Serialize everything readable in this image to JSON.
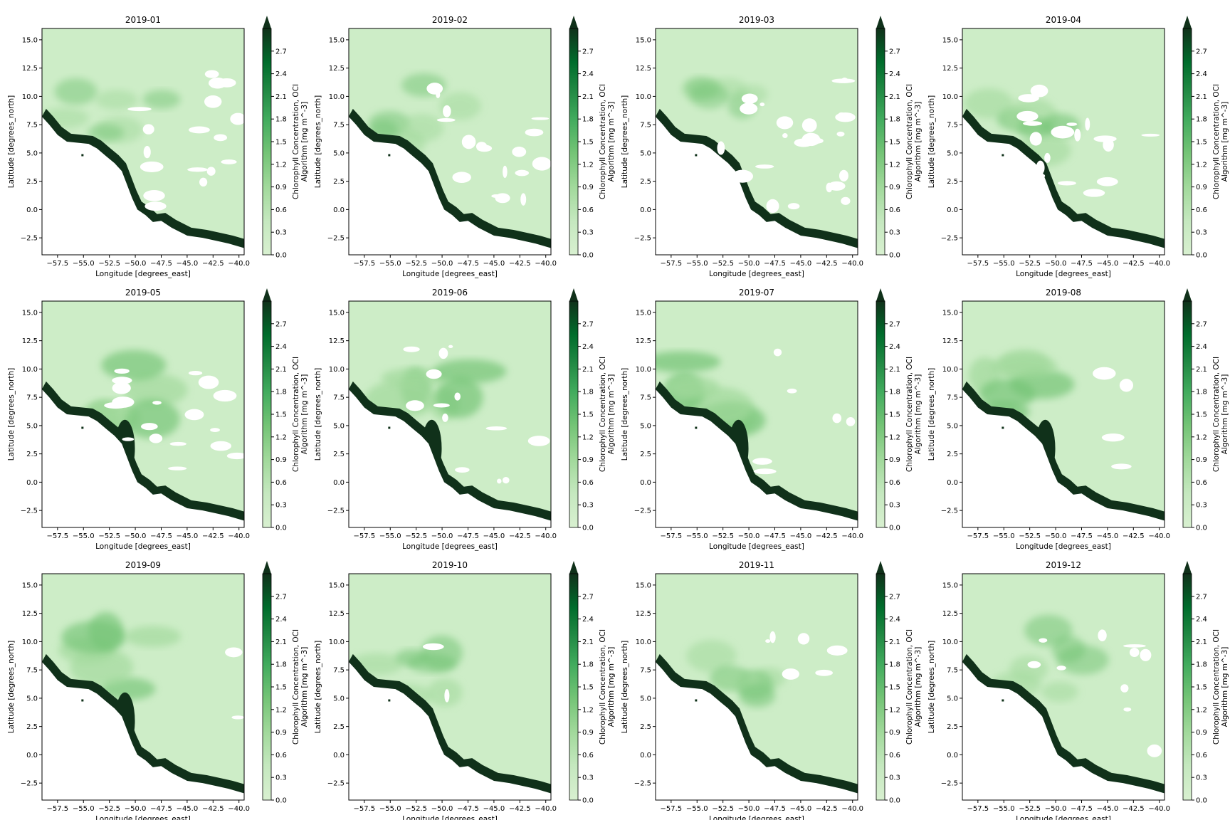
{
  "chart_data": {
    "type": "heatmap",
    "layout": "3 rows x 4 columns of panels",
    "titles": [
      "2019-01",
      "2019-02",
      "2019-03",
      "2019-04",
      "2019-05",
      "2019-06",
      "2019-07",
      "2019-08",
      "2019-09",
      "2019-10",
      "2019-11",
      "2019-12"
    ],
    "xlabel": "Longitude [degrees_east]",
    "ylabel": "Latitude [degrees_north]",
    "colorbar_label": "Chlorophyll Concentration, OCI Algorithm [mg m^-3]",
    "colorbar_label_lines": [
      "Chlorophyll Concentration, OCI",
      "Algorithm [mg m^-3]"
    ],
    "colormap": "Greens",
    "colorbar_extend": "max",
    "xlim": [
      -59,
      -39.5
    ],
    "ylim": [
      -4,
      16
    ],
    "vlim": [
      0,
      3.0
    ],
    "xticks": [
      -57.5,
      -55.0,
      -52.5,
      -50.0,
      -47.5,
      -45.0,
      -42.5,
      -40.0
    ],
    "xtick_labels": [
      "−57.5",
      "−55.0",
      "−52.5",
      "−50.0",
      "−47.5",
      "−45.0",
      "−42.5",
      "−40.0"
    ],
    "yticks": [
      -2.5,
      0.0,
      2.5,
      5.0,
      7.5,
      10.0,
      12.5,
      15.0
    ],
    "ytick_labels": [
      "−2.5",
      "0.0",
      "2.5",
      "5.0",
      "7.5",
      "10.0",
      "12.5",
      "15.0"
    ],
    "cticks": [
      0.0,
      0.3,
      0.6,
      0.9,
      1.2,
      1.5,
      1.8,
      2.1,
      2.4,
      2.7
    ],
    "ctick_labels": [
      "0.0",
      "0.3",
      "0.6",
      "0.9",
      "1.2",
      "1.5",
      "1.8",
      "2.1",
      "2.4",
      "2.7"
    ],
    "colors": {
      "low": "#d5f1cf",
      "mid_low": "#c3e9bc",
      "mid": "#74c476",
      "high": "#238b45",
      "max": "#0f3a1c",
      "nodata": "#ffffff"
    }
  }
}
